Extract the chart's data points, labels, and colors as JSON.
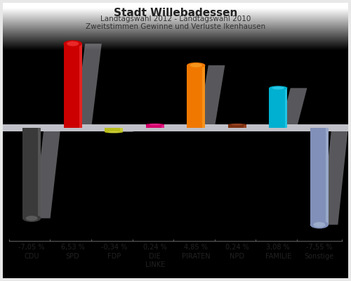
{
  "title": "Stadt Willebadessen",
  "subtitle1": "Landtagswahl 2012 - Landtagswahl 2010",
  "subtitle2": "Zweitstimmen Gewinne und Verluste Ikenhausen",
  "categories": [
    "CDU",
    "SPD",
    "FDP",
    "DIE\nLINKE",
    "PIRATEN",
    "NPD",
    "FAMILIE",
    "Sonstige"
  ],
  "values": [
    -7.05,
    6.53,
    -0.34,
    0.24,
    4.85,
    0.24,
    3.08,
    -7.55
  ],
  "labels": [
    "-7,05 %",
    "6,53 %",
    "-0,34 %",
    "0,24 %",
    "4,85 %",
    "0,24 %",
    "3,08 %",
    "-7,55 %"
  ],
  "colors": [
    "#3a3a3a",
    "#cc0000",
    "#b8bc1a",
    "#d4006a",
    "#f07800",
    "#7a3010",
    "#00b0d0",
    "#8090b8"
  ],
  "colors_light": [
    "#707070",
    "#ff4444",
    "#d8dc50",
    "#f040a0",
    "#ffaa30",
    "#b05030",
    "#40d8f8",
    "#b0c0d8"
  ],
  "background_top": "#f0f0f0",
  "background_bottom": "#d8d8e0",
  "zero_band_color": "#c0c0c8",
  "ylim": [
    -8.5,
    7.5
  ],
  "bar_width": 0.45
}
